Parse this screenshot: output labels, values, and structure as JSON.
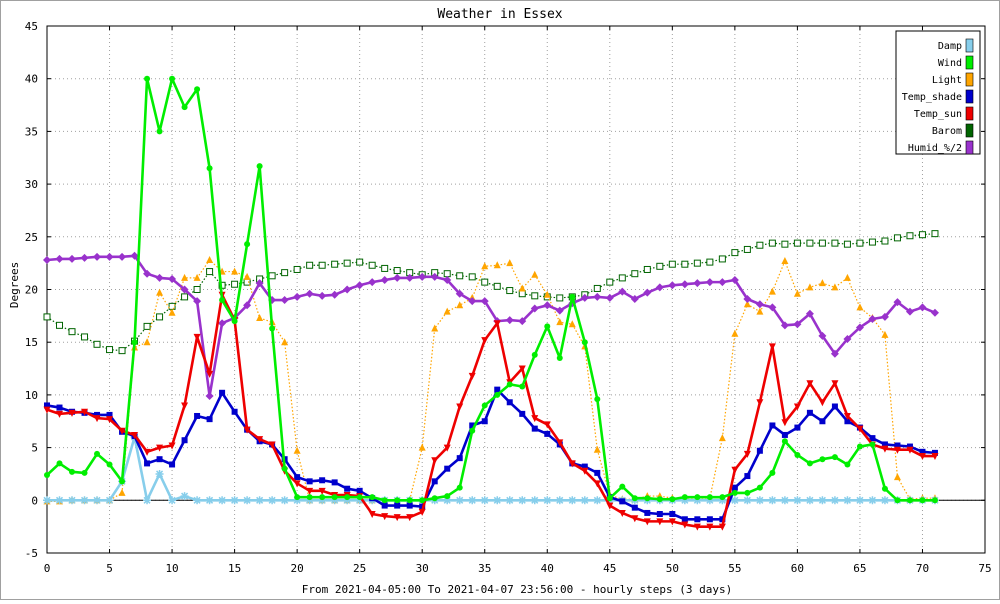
{
  "chart_data": {
    "type": "line",
    "title": "Weather in Essex",
    "ylabel": "Degrees",
    "xlabel": "From 2021-04-05:00 To 2021-04-07 23:56:00 - hourly steps (3 days)",
    "xlim": [
      0,
      75
    ],
    "ylim": [
      -5,
      45
    ],
    "xticks": [
      0,
      5,
      10,
      15,
      20,
      25,
      30,
      35,
      40,
      45,
      50,
      55,
      60,
      65,
      70,
      75
    ],
    "yticks": [
      -5,
      0,
      5,
      10,
      15,
      20,
      25,
      30,
      35,
      40,
      45
    ],
    "grid": true,
    "legend_position": "top-right",
    "series": [
      {
        "name": "Damp",
        "color": "#87ceeb",
        "marker": "star",
        "dash": "solid",
        "values": [
          0,
          0,
          0,
          0,
          0,
          0,
          1.8,
          6,
          0,
          2.5,
          0,
          0.4,
          0,
          0,
          0,
          0,
          0,
          0,
          0,
          0,
          0,
          0,
          0,
          0,
          0,
          0,
          0,
          0,
          0,
          0,
          0,
          0,
          0,
          0,
          0,
          0,
          0,
          0,
          0,
          0,
          0,
          0,
          0,
          0,
          0,
          0,
          0,
          0,
          0,
          0,
          0,
          0,
          0,
          0,
          0,
          0,
          0,
          0,
          0,
          0,
          0,
          0,
          0,
          0,
          0,
          0,
          0,
          0,
          0,
          0,
          0,
          0
        ]
      },
      {
        "name": "Wind",
        "color": "#00ee00",
        "marker": "circle",
        "dash": "solid",
        "values": [
          2.4,
          3.5,
          2.7,
          2.6,
          4.4,
          3.4,
          1.8,
          15,
          40,
          35,
          40,
          37.3,
          39,
          31.5,
          19,
          17,
          24.3,
          31.7,
          16.3,
          3,
          0.3,
          0.3,
          0.3,
          0.3,
          0.3,
          0.3,
          0.3,
          0,
          0,
          0,
          0,
          0.2,
          0.4,
          1.2,
          6.6,
          9,
          10,
          11,
          10.8,
          13.8,
          16.5,
          13.5,
          19.3,
          15,
          9.6,
          0.2,
          1.3,
          0.2,
          0.2,
          0.1,
          0.1,
          0.3,
          0.3,
          0.3,
          0.3,
          0.7,
          0.7,
          1.2,
          2.6,
          5.6,
          4.3,
          3.5,
          3.9,
          4.1,
          3.4,
          5.1,
          5.3,
          1.1,
          0,
          0,
          0,
          0
        ]
      },
      {
        "name": "Light",
        "color": "#ffa500",
        "marker": "triangle",
        "dash": "dotted",
        "values": [
          -0.1,
          -0.1,
          0,
          0,
          0,
          0,
          0.7,
          14.5,
          15,
          19.7,
          17.8,
          21.1,
          21.1,
          22.8,
          21.7,
          21.7,
          21.2,
          17.3,
          16.9,
          15,
          4.7,
          0,
          0,
          0,
          0,
          0,
          0,
          0,
          0,
          0,
          5,
          16.3,
          17.9,
          18.5,
          19.2,
          22.2,
          22.3,
          22.5,
          20.1,
          21.4,
          19.5,
          16.9,
          16.7,
          14.6,
          4.8,
          0.5,
          0.1,
          0.1,
          0.4,
          0.4,
          0.2,
          0.2,
          0.2,
          0.2,
          5.9,
          15.8,
          18.6,
          17.9,
          19.8,
          22.7,
          19.6,
          20.2,
          20.6,
          20.2,
          21.1,
          18.3,
          17.3,
          15.7,
          2.2,
          0.1,
          0.2,
          0.2
        ]
      },
      {
        "name": "Temp_shade",
        "color": "#0000cc",
        "marker": "square",
        "dash": "solid",
        "values": [
          9,
          8.8,
          8.4,
          8.3,
          8.1,
          8.1,
          6.5,
          6.1,
          3.5,
          3.9,
          3.4,
          5.7,
          8,
          7.7,
          10.2,
          8.4,
          6.7,
          5.6,
          5.3,
          3.9,
          2.2,
          1.8,
          1.9,
          1.7,
          1.1,
          0.9,
          0.2,
          -0.5,
          -0.5,
          -0.5,
          -0.6,
          1.8,
          3,
          4,
          7.1,
          7.5,
          10.5,
          9.3,
          8.2,
          6.8,
          6.3,
          5.3,
          3.5,
          3.2,
          2.6,
          0.3,
          -0.1,
          -0.7,
          -1.2,
          -1.3,
          -1.3,
          -1.8,
          -1.8,
          -1.8,
          -1.8,
          1.2,
          2.3,
          4.7,
          7.1,
          6.2,
          6.9,
          8.3,
          7.5,
          8.9,
          7.5,
          6.9,
          5.9,
          5.3,
          5.2,
          5.1,
          4.6,
          4.5
        ]
      },
      {
        "name": "Temp_sun",
        "color": "#ee0000",
        "marker": "triangle-down",
        "dash": "solid",
        "values": [
          8.6,
          8.2,
          8.3,
          8.4,
          7.8,
          7.7,
          6.6,
          6.2,
          4.6,
          5,
          5.2,
          9,
          15.5,
          12,
          19.5,
          17.1,
          6.7,
          5.8,
          5.3,
          2.8,
          1.6,
          0.9,
          0.9,
          0.5,
          0.5,
          0.4,
          -1.3,
          -1.5,
          -1.6,
          -1.6,
          -1.1,
          3.8,
          5,
          8.9,
          11.8,
          15.2,
          16.8,
          11.2,
          12.5,
          7.8,
          7.2,
          5.5,
          3.5,
          2.8,
          1.6,
          -0.5,
          -1.2,
          -1.7,
          -2,
          -2,
          -2,
          -2.3,
          -2.5,
          -2.5,
          -2.5,
          2.9,
          4.4,
          9.3,
          14.6,
          7.4,
          8.9,
          11.1,
          9.3,
          11.1,
          8,
          6.8,
          5.3,
          4.9,
          4.8,
          4.8,
          4.2,
          4.2
        ]
      },
      {
        "name": "Barom",
        "color": "#006400",
        "marker": "open-square",
        "dash": "dotted",
        "values": [
          17.4,
          16.6,
          16,
          15.5,
          14.8,
          14.3,
          14.2,
          15.1,
          16.5,
          17.4,
          18.4,
          19.3,
          20,
          21.7,
          20.4,
          20.5,
          20.7,
          21,
          21.3,
          21.6,
          21.9,
          22.3,
          22.3,
          22.4,
          22.5,
          22.6,
          22.3,
          22,
          21.8,
          21.6,
          21.4,
          21.6,
          21.5,
          21.3,
          21.2,
          20.7,
          20.3,
          19.9,
          19.6,
          19.4,
          19.3,
          19.2,
          19.3,
          19.5,
          20.1,
          20.7,
          21.1,
          21.5,
          21.9,
          22.2,
          22.4,
          22.4,
          22.5,
          22.6,
          22.9,
          23.5,
          23.8,
          24.2,
          24.4,
          24.3,
          24.4,
          24.4,
          24.4,
          24.4,
          24.3,
          24.4,
          24.5,
          24.6,
          24.9,
          25.1,
          25.2,
          25.3
        ]
      },
      {
        "name": "Humid_%/2",
        "color": "#9932cc",
        "marker": "diamond",
        "dash": "solid",
        "values": [
          22.8,
          22.9,
          22.9,
          23,
          23.1,
          23.1,
          23.1,
          23.2,
          21.5,
          21.1,
          21,
          20,
          18.9,
          9.9,
          16.8,
          17.3,
          18.5,
          20.6,
          19,
          19,
          19.3,
          19.6,
          19.4,
          19.5,
          20,
          20.4,
          20.7,
          20.9,
          21.1,
          21.1,
          21.2,
          21.2,
          20.9,
          19.6,
          18.9,
          18.9,
          17,
          17.1,
          17,
          18.2,
          18.5,
          18,
          18.7,
          19.2,
          19.3,
          19.2,
          19.8,
          19.1,
          19.7,
          20.2,
          20.4,
          20.5,
          20.6,
          20.7,
          20.7,
          20.9,
          19.1,
          18.6,
          18.3,
          16.6,
          16.7,
          17.7,
          15.6,
          13.9,
          15.3,
          16.4,
          17.2,
          17.4,
          18.8,
          17.9,
          18.3,
          17.8
        ]
      }
    ]
  }
}
